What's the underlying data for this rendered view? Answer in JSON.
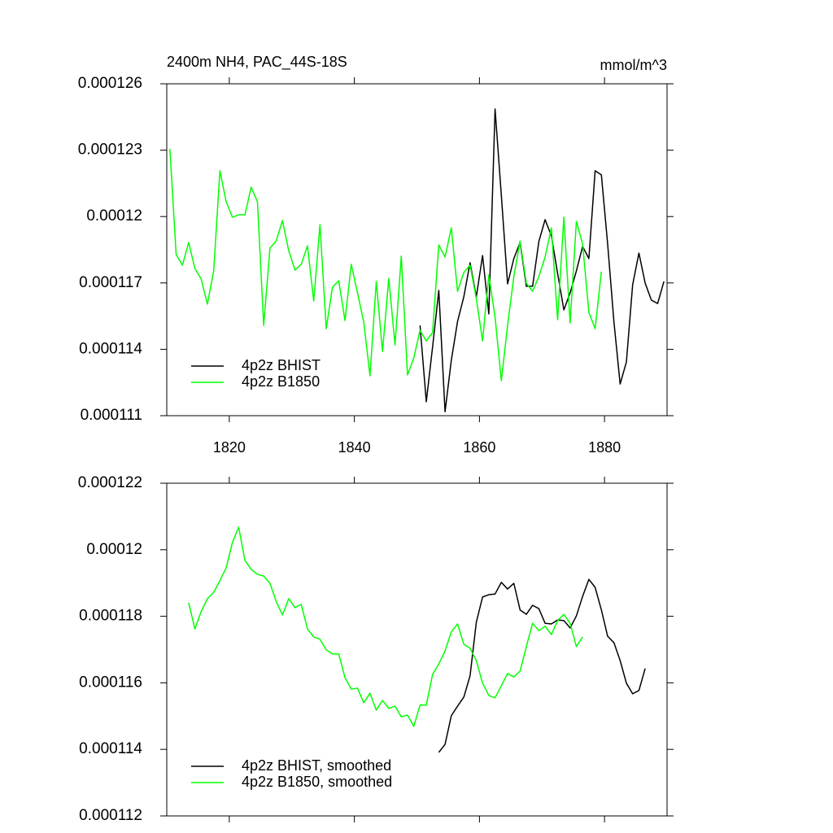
{
  "chart_data": [
    {
      "type": "line",
      "title": "2400m NH4, PAC_44S-18S",
      "units": "mmol/m^3",
      "xlim": [
        1810,
        1890
      ],
      "xticks": [
        1820,
        1840,
        1860,
        1880
      ],
      "ylim": [
        0.000111,
        0.000126
      ],
      "yticks": [
        0.000111,
        0.000114,
        0.000117,
        0.00012,
        0.000123,
        0.000126
      ],
      "legend": "lower left",
      "series": [
        {
          "name": "4p2z BHIST",
          "color": "#000000",
          "x": [
            1850.5,
            1851.5,
            1852.5,
            1853.5,
            1854.5,
            1855.5,
            1856.5,
            1857.5,
            1858.5,
            1859.5,
            1860.5,
            1861.5,
            1862.5,
            1863.5,
            1864.5,
            1865.5,
            1866.5,
            1867.5,
            1868.5,
            1869.5,
            1870.5,
            1871.5,
            1872.5,
            1873.5,
            1874.5,
            1875.5,
            1876.5,
            1877.5,
            1878.5,
            1879.5,
            1880.5,
            1881.5,
            1882.5,
            1883.5,
            1884.5,
            1885.5,
            1886.5,
            1887.5,
            1888.5,
            1889.5
          ],
          "values": [
            0.00011508,
            0.00011163,
            0.00011409,
            0.00011666,
            0.00011118,
            0.0001135,
            0.00011526,
            0.00011637,
            0.00011791,
            0.00011637,
            0.00011824,
            0.0001156,
            0.00012486,
            0.00012096,
            0.00011696,
            0.0001181,
            0.00011883,
            0.00011685,
            0.00011685,
            0.00011887,
            0.00011986,
            0.00011913,
            0.00011743,
            0.00011578,
            0.00011655,
            0.00011754,
            0.00011865,
            0.0001181,
            0.00012207,
            0.00012188,
            0.00011876,
            0.00011526,
            0.00011243,
            0.00011343,
            0.00011692,
            0.00011835,
            0.00011699,
            0.00011622,
            0.00011607,
            0.00011707
          ]
        },
        {
          "name": "4p2z B1850",
          "color": "#00ff00",
          "x": [
            1810.5,
            1811.5,
            1812.5,
            1813.5,
            1814.5,
            1815.5,
            1816.5,
            1817.5,
            1818.5,
            1819.5,
            1820.5,
            1821.5,
            1822.5,
            1823.5,
            1824.5,
            1825.5,
            1826.5,
            1827.5,
            1828.5,
            1829.5,
            1830.5,
            1831.5,
            1832.5,
            1833.5,
            1834.5,
            1835.5,
            1836.5,
            1837.5,
            1838.5,
            1839.5,
            1840.5,
            1841.5,
            1842.5,
            1843.5,
            1844.5,
            1845.5,
            1846.5,
            1847.5,
            1848.5,
            1849.5,
            1850.5,
            1851.5,
            1852.5,
            1853.5,
            1854.5,
            1855.5,
            1856.5,
            1857.5,
            1858.5,
            1859.5,
            1860.5,
            1861.5,
            1862.5,
            1863.5,
            1864.5,
            1865.5,
            1866.5,
            1867.5,
            1868.5,
            1869.5,
            1870.5,
            1871.5,
            1872.5,
            1873.5,
            1874.5,
            1875.5,
            1876.5,
            1877.5,
            1878.5,
            1879.5
          ],
          "values": [
            0.00012306,
            0.00011828,
            0.0001178,
            0.00011883,
            0.00011765,
            0.00011718,
            0.00011604,
            0.00011754,
            0.00012207,
            0.00012067,
            0.00011997,
            0.00012008,
            0.00012008,
            0.00012133,
            0.00012067,
            0.00011508,
            0.00011857,
            0.0001189,
            0.00011982,
            0.00011846,
            0.00011758,
            0.00011784,
            0.00011868,
            0.00011618,
            0.00011964,
            0.00011493,
            0.00011681,
            0.0001171,
            0.0001153,
            0.00011784,
            0.00011655,
            0.00011523,
            0.0001128,
            0.00011707,
            0.0001139,
            0.00011721,
            0.0001142,
            0.00011821,
            0.00011284,
            0.00011361,
            0.00011486,
            0.00011438,
            0.00011475,
            0.00011872,
            0.00011817,
            0.00011949,
            0.00011662,
            0.00011747,
            0.0001178,
            0.00011629,
            0.00011438,
            0.00011736,
            0.00011545,
            0.00011258,
            0.00011508,
            0.00011729,
            0.0001189,
            0.00011699,
            0.00011662,
            0.00011729,
            0.00011817,
            0.00011949,
            0.00011534,
            0.00011997,
            0.00011519,
            0.00011978,
            0.00011876,
            0.00011567,
            0.00011493,
            0.00011751
          ]
        }
      ]
    },
    {
      "type": "line",
      "xlim": [
        1810,
        1890
      ],
      "xticks": [
        1820,
        1840,
        1860,
        1880
      ],
      "xtick_labels": false,
      "ylim": [
        0.000112,
        0.000122
      ],
      "yticks": [
        0.000112,
        0.000114,
        0.000116,
        0.000118,
        0.00012,
        0.000122
      ],
      "legend": "lower left",
      "series": [
        {
          "name": "4p2z BHIST, smoothed",
          "color": "#000000",
          "x": [
            1853.5,
            1854.5,
            1855.5,
            1856.5,
            1857.5,
            1858.5,
            1859.5,
            1860.5,
            1861.5,
            1862.5,
            1863.5,
            1864.5,
            1865.5,
            1866.5,
            1867.5,
            1868.5,
            1869.5,
            1870.5,
            1871.5,
            1872.5,
            1873.5,
            1874.5,
            1875.5,
            1876.5,
            1877.5,
            1878.5,
            1879.5,
            1880.5,
            1881.5,
            1882.5,
            1883.5,
            1884.5,
            1885.5,
            1886.5
          ],
          "values": [
            0.00011391,
            0.00011415,
            0.00011501,
            0.0001153,
            0.00011557,
            0.00011621,
            0.00011782,
            0.00011858,
            0.00011865,
            0.00011867,
            0.00011902,
            0.00011882,
            0.00011899,
            0.00011819,
            0.00011806,
            0.00011833,
            0.00011823,
            0.00011779,
            0.00011777,
            0.00011789,
            0.00011787,
            0.00011765,
            0.00011801,
            0.0001186,
            0.00011911,
            0.00011887,
            0.00011819,
            0.0001174,
            0.00011721,
            0.00011667,
            0.00011599,
            0.00011567,
            0.00011577,
            0.00011643
          ]
        },
        {
          "name": "4p2z B1850, smoothed",
          "color": "#00ff00",
          "x": [
            1813.5,
            1814.5,
            1815.5,
            1816.5,
            1817.5,
            1818.5,
            1819.5,
            1820.5,
            1821.5,
            1822.5,
            1823.5,
            1824.5,
            1825.5,
            1826.5,
            1827.5,
            1828.5,
            1829.5,
            1830.5,
            1831.5,
            1832.5,
            1833.5,
            1834.5,
            1835.5,
            1836.5,
            1837.5,
            1838.5,
            1839.5,
            1840.5,
            1841.5,
            1842.5,
            1843.5,
            1844.5,
            1845.5,
            1846.5,
            1847.5,
            1848.5,
            1849.5,
            1850.5,
            1851.5,
            1852.5,
            1853.5,
            1854.5,
            1855.5,
            1856.5,
            1857.5,
            1858.5,
            1859.5,
            1860.5,
            1861.5,
            1862.5,
            1863.5,
            1864.5,
            1865.5,
            1866.5,
            1867.5,
            1868.5,
            1869.5,
            1870.5,
            1871.5,
            1872.5,
            1873.5,
            1874.5,
            1875.5,
            1876.5
          ],
          "values": [
            0.00011841,
            0.00011762,
            0.00011814,
            0.00011853,
            0.00011872,
            0.00011907,
            0.00011946,
            0.00012022,
            0.00012068,
            0.00011968,
            0.00011941,
            0.00011926,
            0.00011921,
            0.00011899,
            0.00011845,
            0.00011804,
            0.00011853,
            0.00011826,
            0.00011836,
            0.00011762,
            0.00011738,
            0.00011731,
            0.00011699,
            0.00011687,
            0.00011687,
            0.00011616,
            0.00011581,
            0.00011584,
            0.0001154,
            0.00011569,
            0.00011518,
            0.00011547,
            0.00011523,
            0.0001153,
            0.00011498,
            0.00011503,
            0.00011469,
            0.00011533,
            0.00011533,
            0.00011625,
            0.00011657,
            0.00011696,
            0.00011753,
            0.00011777,
            0.00011716,
            0.00011704,
            0.00011667,
            0.00011599,
            0.00011562,
            0.00011555,
            0.00011591,
            0.00011628,
            0.00011618,
            0.00011635,
            0.00011709,
            0.00011779,
            0.00011757,
            0.0001177,
            0.00011745,
            0.00011787,
            0.00011806,
            0.00011779,
            0.00011709,
            0.00011738
          ]
        }
      ]
    }
  ]
}
